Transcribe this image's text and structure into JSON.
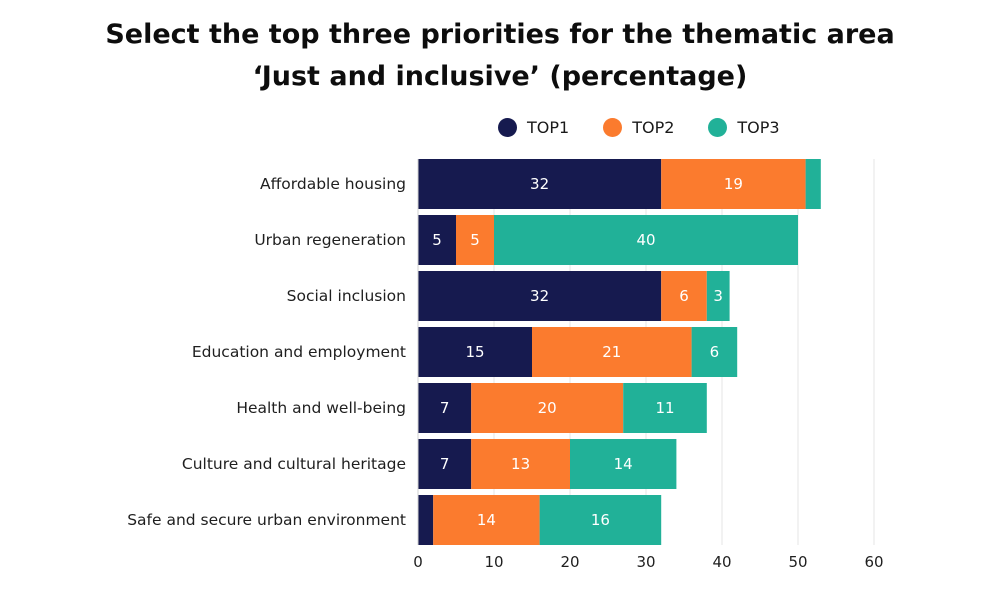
{
  "title": {
    "line1": "Select the top three priorities for the thematic area",
    "line2": "‘Just and inclusive’ (percentage)"
  },
  "legend": [
    {
      "label": "TOP1",
      "color": "#161a4f"
    },
    {
      "label": "TOP2",
      "color": "#fb7b2e"
    },
    {
      "label": "TOP3",
      "color": "#21b198"
    }
  ],
  "chart_data": {
    "type": "bar",
    "orientation": "horizontal",
    "stacked": true,
    "title": "Select the top three priorities for the thematic area ‘Just and inclusive’ (percentage)",
    "categories": [
      "Affordable housing",
      "Urban regeneration",
      "Social inclusion",
      "Education and employment",
      "Health and well-being",
      "Culture and cultural heritage",
      "Safe and secure urban environment"
    ],
    "series": [
      {
        "name": "TOP1",
        "color": "#161a4f",
        "values": [
          32,
          5,
          32,
          15,
          7,
          7,
          2
        ]
      },
      {
        "name": "TOP2",
        "color": "#fb7b2e",
        "values": [
          19,
          5,
          6,
          21,
          20,
          13,
          14
        ]
      },
      {
        "name": "TOP3",
        "color": "#21b198",
        "values": [
          2,
          40,
          3,
          6,
          11,
          14,
          16
        ]
      }
    ],
    "show_labels_min": 3,
    "xlim": [
      0,
      60
    ],
    "xticks": [
      0,
      10,
      20,
      30,
      40,
      50,
      60
    ],
    "grid": true,
    "legend_position": "top-right"
  }
}
